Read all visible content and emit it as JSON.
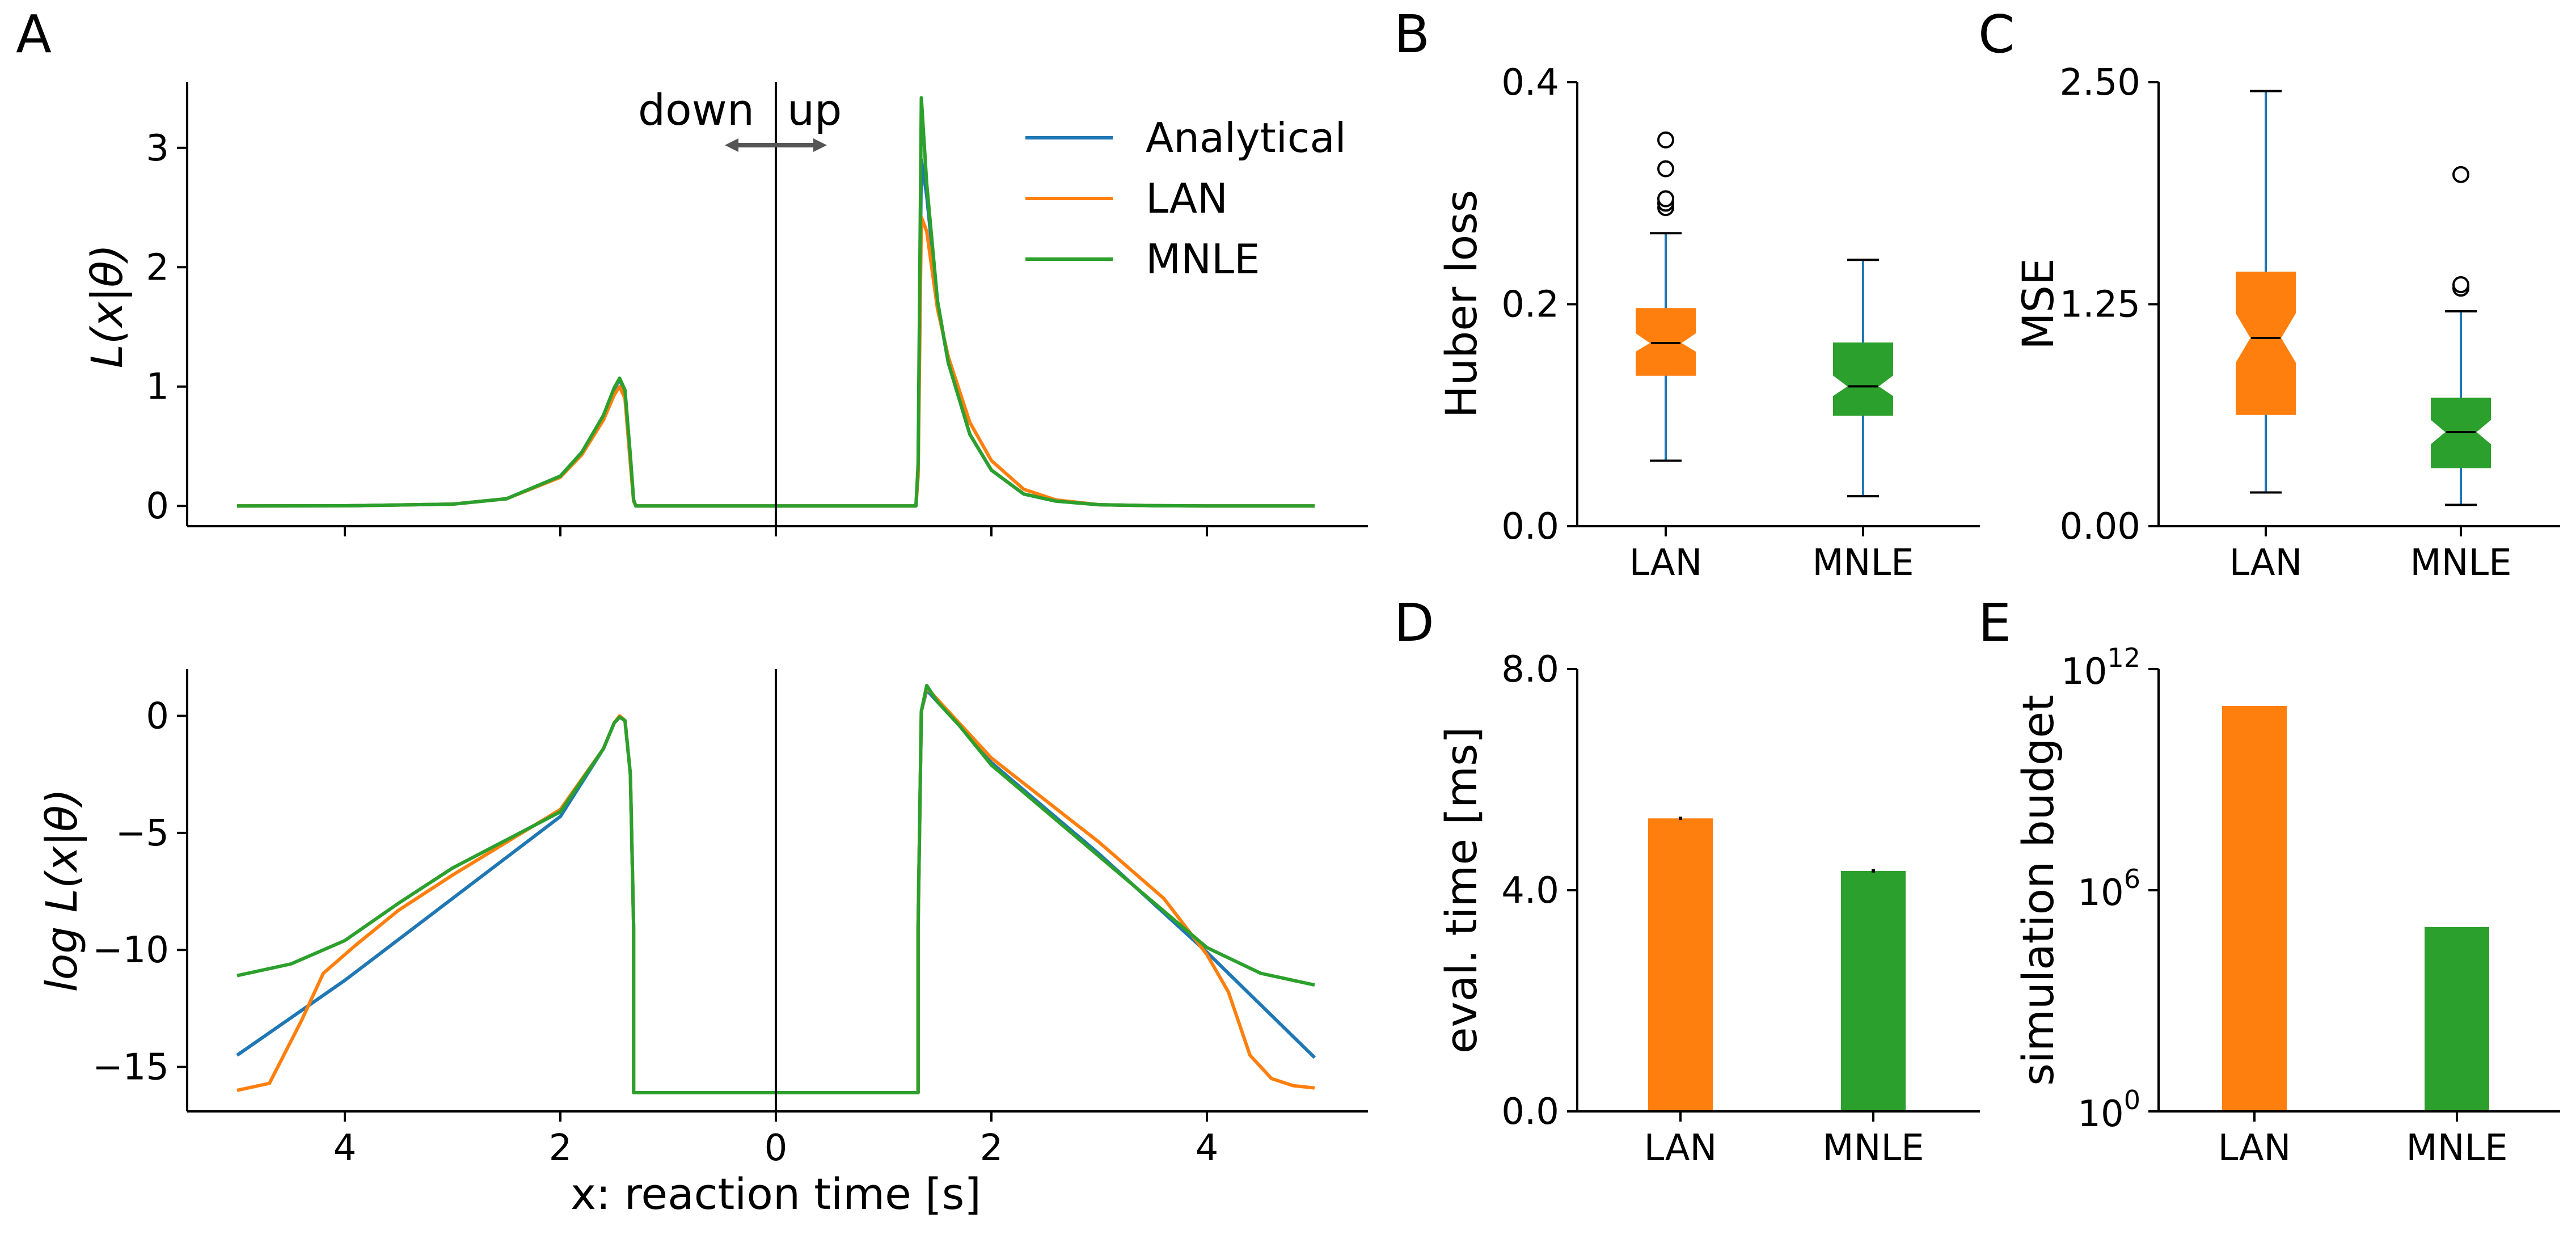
{
  "colors": {
    "analytical": "#1f77b4",
    "lan": "#ff7f0e",
    "mnle": "#2ca02c",
    "axis": "#000000",
    "arrow": "#555555"
  },
  "panels": {
    "A": {
      "letter": "A"
    },
    "B": {
      "letter": "B"
    },
    "C": {
      "letter": "C"
    },
    "D": {
      "letter": "D"
    },
    "E": {
      "letter": "E"
    }
  },
  "annotations": {
    "down": "down",
    "up": "up"
  },
  "legend": [
    "Analytical",
    "LAN",
    "MNLE"
  ],
  "chart_data": [
    {
      "id": "A_top",
      "type": "line",
      "xlabel": "",
      "ylabel": "L(x|θ)",
      "x_tick_labels": [
        "4",
        "2",
        "0",
        "2",
        "4"
      ],
      "x_tick_values": [
        -4,
        -2,
        0,
        2,
        4
      ],
      "y_tick_labels": [
        "0",
        "1",
        "2",
        "3"
      ],
      "y_tick_values": [
        0,
        1,
        2,
        3
      ],
      "xlim": [
        -5.5,
        5.5
      ],
      "ylim": [
        -0.17,
        3.55
      ],
      "grid": false,
      "legend_position": "upper-right",
      "note_x": "negative x = down choice, positive x = up choice; tick labels show |x|",
      "series": [
        {
          "name": "Analytical",
          "x": [
            -5,
            -4,
            -3,
            -2.5,
            -2,
            -1.8,
            -1.6,
            -1.5,
            -1.45,
            -1.4,
            -1.35,
            -1.32,
            -1.3,
            1.3,
            1.32,
            1.35,
            1.4,
            1.5,
            1.6,
            1.8,
            2,
            2.3,
            2.6,
            3,
            3.5,
            4,
            5
          ],
          "y": [
            0,
            0.001,
            0.015,
            0.06,
            0.25,
            0.45,
            0.75,
            0.98,
            1.06,
            0.95,
            0.4,
            0.05,
            0,
            0,
            0.3,
            2.9,
            2.6,
            1.7,
            1.2,
            0.6,
            0.3,
            0.1,
            0.04,
            0.01,
            0.002,
            0,
            0
          ]
        },
        {
          "name": "LAN",
          "x": [
            -5,
            -4,
            -3,
            -2.5,
            -2,
            -1.8,
            -1.6,
            -1.5,
            -1.45,
            -1.4,
            -1.35,
            -1.32,
            -1.3,
            1.3,
            1.32,
            1.35,
            1.4,
            1.5,
            1.6,
            1.8,
            2,
            2.3,
            2.6,
            3,
            3.5,
            4,
            5
          ],
          "y": [
            0,
            0.001,
            0.015,
            0.06,
            0.24,
            0.43,
            0.72,
            0.93,
            1.0,
            0.9,
            0.35,
            0.04,
            0,
            0,
            0.25,
            2.42,
            2.3,
            1.65,
            1.25,
            0.7,
            0.38,
            0.14,
            0.05,
            0.01,
            0.002,
            0,
            0
          ]
        },
        {
          "name": "MNLE",
          "x": [
            -5,
            -4,
            -3,
            -2.5,
            -2,
            -1.8,
            -1.6,
            -1.5,
            -1.45,
            -1.4,
            -1.35,
            -1.32,
            -1.3,
            1.3,
            1.32,
            1.35,
            1.4,
            1.5,
            1.6,
            1.8,
            2,
            2.3,
            2.6,
            3,
            3.5,
            4,
            5
          ],
          "y": [
            0,
            0.001,
            0.015,
            0.06,
            0.25,
            0.45,
            0.76,
            0.99,
            1.07,
            0.97,
            0.42,
            0.05,
            0,
            0,
            0.35,
            3.42,
            2.7,
            1.72,
            1.2,
            0.6,
            0.3,
            0.1,
            0.04,
            0.01,
            0.002,
            0,
            0
          ]
        }
      ]
    },
    {
      "id": "A_bottom",
      "type": "line",
      "xlabel": "x: reaction time [s]",
      "ylabel": "log L(x|θ)",
      "x_tick_labels": [
        "4",
        "2",
        "0",
        "2",
        "4"
      ],
      "x_tick_values": [
        -4,
        -2,
        0,
        2,
        4
      ],
      "y_tick_labels": [
        "0",
        "−5",
        "−10",
        "−15"
      ],
      "y_tick_values": [
        0,
        -5,
        -10,
        -15
      ],
      "xlim": [
        -5.5,
        5.5
      ],
      "ylim": [
        -16.9,
        2.0
      ],
      "grid": false,
      "series": [
        {
          "name": "Analytical",
          "x": [
            -5,
            -4,
            -3,
            -2,
            -1.6,
            -1.5,
            -1.45,
            -1.4,
            -1.35,
            -1.32,
            -1.32,
            1.32,
            1.32,
            1.35,
            1.4,
            1.5,
            1.7,
            2,
            3,
            4,
            5
          ],
          "y": [
            -14.5,
            -11.3,
            -7.8,
            -4.3,
            -1.4,
            -0.3,
            -0.05,
            -0.2,
            -2.5,
            -9,
            -16.1,
            -16.1,
            -9,
            0.2,
            1.1,
            0.6,
            -0.4,
            -2.0,
            -5.9,
            -10.1,
            -14.6
          ]
        },
        {
          "name": "LAN",
          "x": [
            -5,
            -4.7,
            -4.4,
            -4.2,
            -3.9,
            -3.5,
            -3,
            -2,
            -1.6,
            -1.5,
            -1.45,
            -1.4,
            -1.35,
            -1.32,
            -1.32,
            1.32,
            1.32,
            1.35,
            1.4,
            1.5,
            1.7,
            2,
            3,
            3.6,
            4,
            4.2,
            4.4,
            4.6,
            4.8,
            5
          ],
          "y": [
            -16.0,
            -15.7,
            -13.0,
            -11.0,
            -9.8,
            -8.3,
            -6.8,
            -4.0,
            -1.4,
            -0.3,
            0.0,
            -0.2,
            -2.5,
            -9,
            -16.1,
            -16.1,
            -9,
            0.2,
            1.2,
            0.7,
            -0.3,
            -1.8,
            -5.4,
            -7.8,
            -10.2,
            -11.8,
            -14.5,
            -15.5,
            -15.8,
            -15.9
          ]
        },
        {
          "name": "MNLE",
          "x": [
            -5,
            -4.5,
            -4,
            -3.5,
            -3,
            -2,
            -1.6,
            -1.5,
            -1.45,
            -1.4,
            -1.35,
            -1.32,
            -1.32,
            1.32,
            1.32,
            1.35,
            1.4,
            1.5,
            1.7,
            2,
            3,
            4,
            4.5,
            5
          ],
          "y": [
            -11.1,
            -10.6,
            -9.6,
            -8.0,
            -6.5,
            -4.1,
            -1.4,
            -0.3,
            -0.05,
            -0.2,
            -2.5,
            -9,
            -16.1,
            -16.1,
            -9,
            0.2,
            1.3,
            0.6,
            -0.4,
            -2.1,
            -6.0,
            -9.9,
            -11.0,
            -11.5
          ]
        }
      ]
    },
    {
      "id": "B",
      "type": "box",
      "ylabel": "Huber loss",
      "categories": [
        "LAN",
        "MNLE"
      ],
      "y_tick_labels": [
        "0.0",
        "0.2",
        "0.4"
      ],
      "y_tick_values": [
        0,
        0.2,
        0.4
      ],
      "ylim": [
        0,
        0.4
      ],
      "boxes": [
        {
          "category": "LAN",
          "whislo": 0.059,
          "q1": 0.136,
          "med": 0.165,
          "q3": 0.196,
          "whishi": 0.264,
          "notch_lo": 0.157,
          "notch_hi": 0.174,
          "fliers": [
            0.287,
            0.291,
            0.295,
            0.322,
            0.348
          ]
        },
        {
          "category": "MNLE",
          "whislo": 0.027,
          "q1": 0.1,
          "med": 0.126,
          "q3": 0.165,
          "whishi": 0.24,
          "notch_lo": 0.117,
          "notch_hi": 0.136,
          "fliers": []
        }
      ]
    },
    {
      "id": "C",
      "type": "box",
      "ylabel": "MSE",
      "categories": [
        "LAN",
        "MNLE"
      ],
      "y_tick_labels": [
        "0.00",
        "1.25",
        "2.50"
      ],
      "y_tick_values": [
        0,
        1.25,
        2.5
      ],
      "ylim": [
        0,
        2.5
      ],
      "boxes": [
        {
          "category": "LAN",
          "whislo": 0.19,
          "q1": 0.63,
          "med": 1.06,
          "q3": 1.43,
          "whishi": 2.45,
          "notch_lo": 0.92,
          "notch_hi": 1.2,
          "fliers": []
        },
        {
          "category": "MNLE",
          "whislo": 0.12,
          "q1": 0.33,
          "med": 0.53,
          "q3": 0.72,
          "whishi": 1.21,
          "notch_lo": 0.46,
          "notch_hi": 0.6,
          "fliers": [
            1.34,
            1.36,
            1.98
          ]
        }
      ]
    },
    {
      "id": "D",
      "type": "bar",
      "ylabel": "eval. time [ms]",
      "categories": [
        "LAN",
        "MNLE"
      ],
      "values": [
        5.3,
        4.35
      ],
      "errors": [
        0.03,
        0.03
      ],
      "y_tick_labels": [
        "0.0",
        "4.0",
        "8.0"
      ],
      "y_tick_values": [
        0,
        4,
        8
      ],
      "ylim": [
        0,
        8
      ]
    },
    {
      "id": "E",
      "type": "bar",
      "ylabel": "simulation budget",
      "categories": [
        "LAN",
        "MNLE"
      ],
      "values": [
        100000000000.0,
        100000.0
      ],
      "yscale": "log",
      "y_tick_exponents": [
        "12",
        "6",
        "0"
      ],
      "y_tick_base": "10",
      "y_tick_values": [
        1000000000000.0,
        1000000.0,
        1
      ],
      "ylim": [
        1,
        1000000000000.0
      ]
    }
  ]
}
